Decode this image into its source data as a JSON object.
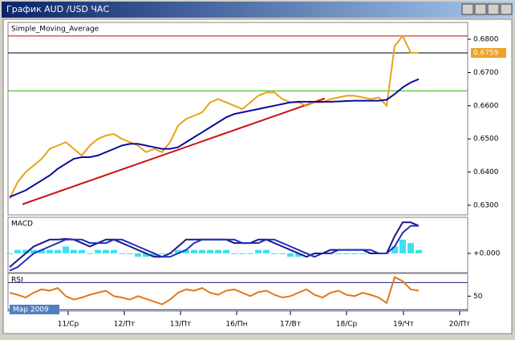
{
  "window": {
    "title": "График AUD /USD  ЧАС"
  },
  "chart_data": [
    {
      "type": "line",
      "title": "Simple_Moving_Average",
      "x": [
        0,
        1,
        2,
        3,
        4,
        5,
        6,
        7,
        8,
        9,
        10,
        11,
        12,
        13,
        14,
        15,
        16,
        17,
        18,
        19,
        20,
        21,
        22,
        23,
        24,
        25,
        26,
        27,
        28,
        29,
        30,
        31,
        32,
        33,
        34,
        35,
        36,
        37,
        38,
        39,
        40,
        41,
        42,
        43,
        44,
        45,
        46,
        47,
        48,
        49,
        50,
        51
      ],
      "xlim": [
        -0.2,
        57.1
      ],
      "xticks": [
        {
          "value": 7.3,
          "label": "11/Ср"
        },
        {
          "value": 14.3,
          "label": "12/Пт"
        },
        {
          "value": 21.3,
          "label": "13/Пт"
        },
        {
          "value": 28.3,
          "label": "16/Пн"
        },
        {
          "value": 35,
          "label": "17/Вт"
        },
        {
          "value": 42,
          "label": "18/Ср"
        },
        {
          "value": 49.1,
          "label": "19/Чт"
        },
        {
          "value": 56.1,
          "label": "20/Пт"
        }
      ],
      "ylim": [
        0.6271,
        0.6846
      ],
      "yticks": [
        {
          "value": 0.68,
          "label": "0.6800"
        },
        {
          "value": 0.67,
          "label": "0.6700"
        },
        {
          "value": 0.66,
          "label": "0.6600"
        },
        {
          "value": 0.65,
          "label": "0.6500"
        },
        {
          "value": 0.64,
          "label": "0.6400"
        },
        {
          "value": 0.63,
          "label": "0.6300"
        }
      ],
      "series": [
        {
          "color": "#e8a317",
          "values": [
            0.632,
            0.637,
            0.64,
            0.642,
            0.644,
            0.647,
            0.648,
            0.649,
            0.647,
            0.645,
            0.648,
            0.65,
            0.651,
            0.6515,
            0.65,
            0.649,
            0.648,
            0.646,
            0.647,
            0.646,
            0.649,
            0.654,
            0.656,
            0.657,
            0.658,
            0.661,
            0.662,
            0.661,
            0.66,
            0.659,
            0.661,
            0.663,
            0.664,
            0.664,
            0.662,
            0.661,
            0.661,
            0.66,
            0.661,
            0.661,
            0.662,
            0.6625,
            0.663,
            0.663,
            0.6625,
            0.662,
            0.6625,
            0.66,
            0.678,
            0.681,
            0.676,
            0.6759
          ]
        },
        {
          "color": "#0a0aa0",
          "values": [
            0.6325,
            0.6335,
            0.6345,
            0.636,
            0.6375,
            0.639,
            0.641,
            0.6425,
            0.644,
            0.6445,
            0.6445,
            0.645,
            0.646,
            0.647,
            0.648,
            0.6485,
            0.6485,
            0.648,
            0.6475,
            0.647,
            0.647,
            0.6475,
            0.649,
            0.6505,
            0.652,
            0.6535,
            0.655,
            0.6565,
            0.6575,
            0.658,
            0.6585,
            0.659,
            0.6595,
            0.66,
            0.6605,
            0.661,
            0.6612,
            0.6612,
            0.6612,
            0.6612,
            0.6612,
            0.6613,
            0.6614,
            0.6615,
            0.6615,
            0.6615,
            0.6615,
            0.6618,
            0.6635,
            0.6655,
            0.667,
            0.668
          ]
        }
      ],
      "hlines": [
        {
          "value": 0.681,
          "color": "#d00000"
        },
        {
          "value": 0.6759,
          "color": "#000000",
          "label": "0.6759"
        },
        {
          "value": 0.6645,
          "color": "#22b000"
        }
      ],
      "trendline": {
        "x": [
          1.6,
          39.3
        ],
        "values": [
          0.6303,
          0.6622
        ],
        "color": "#cc1010"
      },
      "annotation": "Мар 2009"
    },
    {
      "type": "line",
      "title": "MACD",
      "ylim": [
        -0.00056,
        0.001
      ],
      "yticks": [
        {
          "value": 0,
          "label": "+0.000"
        }
      ],
      "series": [
        {
          "type": "bar",
          "color": "#40e0f0",
          "values": [
            0,
            0.0001,
            0.0001,
            0.0001,
            0.0001,
            0.0001,
            0.0001,
            0.0002,
            0.0001,
            0.0001,
            0,
            0.0001,
            0.0001,
            0.0001,
            0,
            0,
            -0.0001,
            -0.0001,
            -0.0001,
            0,
            0,
            0.0001,
            0.0001,
            0.0001,
            0.0001,
            0.0001,
            0.0001,
            0.0001,
            0,
            0,
            0,
            0.0001,
            0.0001,
            0,
            0,
            -0.0001,
            -0.0001,
            0,
            0,
            0,
            0,
            0,
            0,
            0,
            0,
            0,
            0,
            0,
            0.0002,
            0.0004,
            0.0003,
            0.0001
          ]
        },
        {
          "color": "#1a1a80",
          "values": [
            -0.0004,
            -0.0002,
            0,
            0.0002,
            0.0003,
            0.0004,
            0.0004,
            0.00042,
            0.0004,
            0.0003,
            0.0002,
            0.0003,
            0.0004,
            0.0004,
            0.0003,
            0.0002,
            0.0001,
            0,
            -0.0001,
            -0.0001,
            0,
            0.0002,
            0.0004,
            0.0004,
            0.0004,
            0.0004,
            0.0004,
            0.0004,
            0.0003,
            0.0003,
            0.0003,
            0.0004,
            0.0004,
            0.0003,
            0.0002,
            0.0001,
            0,
            -0.0001,
            0,
            0,
            0.0001,
            0.0001,
            0.0001,
            0.0001,
            0.0001,
            0,
            0,
            0,
            0.0005,
            0.0009,
            0.0009,
            0.0008
          ]
        },
        {
          "color": "#2030c0",
          "values": [
            -0.0005,
            -0.0004,
            -0.0002,
            0,
            0.0001,
            0.0002,
            0.0003,
            0.0004,
            0.0004,
            0.0004,
            0.0003,
            0.0003,
            0.0003,
            0.0004,
            0.0004,
            0.0003,
            0.0002,
            0.0001,
            0,
            -0.0001,
            -0.0001,
            0,
            0.0001,
            0.0003,
            0.0004,
            0.0004,
            0.0004,
            0.0004,
            0.0004,
            0.0003,
            0.0003,
            0.0003,
            0.0004,
            0.0004,
            0.0003,
            0.0002,
            0.0001,
            0,
            -0.0001,
            0,
            0,
            0.0001,
            0.0001,
            0.0001,
            0.0001,
            0.0001,
            0,
            0,
            0.0002,
            0.0006,
            0.0008,
            0.0008
          ]
        }
      ]
    },
    {
      "type": "line",
      "title": "RSI",
      "ylim": [
        28,
        81
      ],
      "yticks": [
        50
      ],
      "hlines": [
        {
          "value": 70,
          "color": "#1a1a80"
        },
        {
          "value": 30,
          "color": "#1a1a80"
        }
      ],
      "series": [
        {
          "color": "#e07818",
          "values": [
            55,
            52,
            48,
            55,
            60,
            58,
            62,
            50,
            45,
            48,
            52,
            55,
            58,
            50,
            48,
            45,
            50,
            46,
            42,
            38,
            45,
            55,
            60,
            58,
            62,
            55,
            52,
            58,
            60,
            55,
            50,
            56,
            58,
            52,
            48,
            50,
            55,
            60,
            52,
            48,
            55,
            58,
            52,
            50,
            55,
            52,
            48,
            40,
            78,
            72,
            60,
            58
          ]
        }
      ]
    }
  ]
}
